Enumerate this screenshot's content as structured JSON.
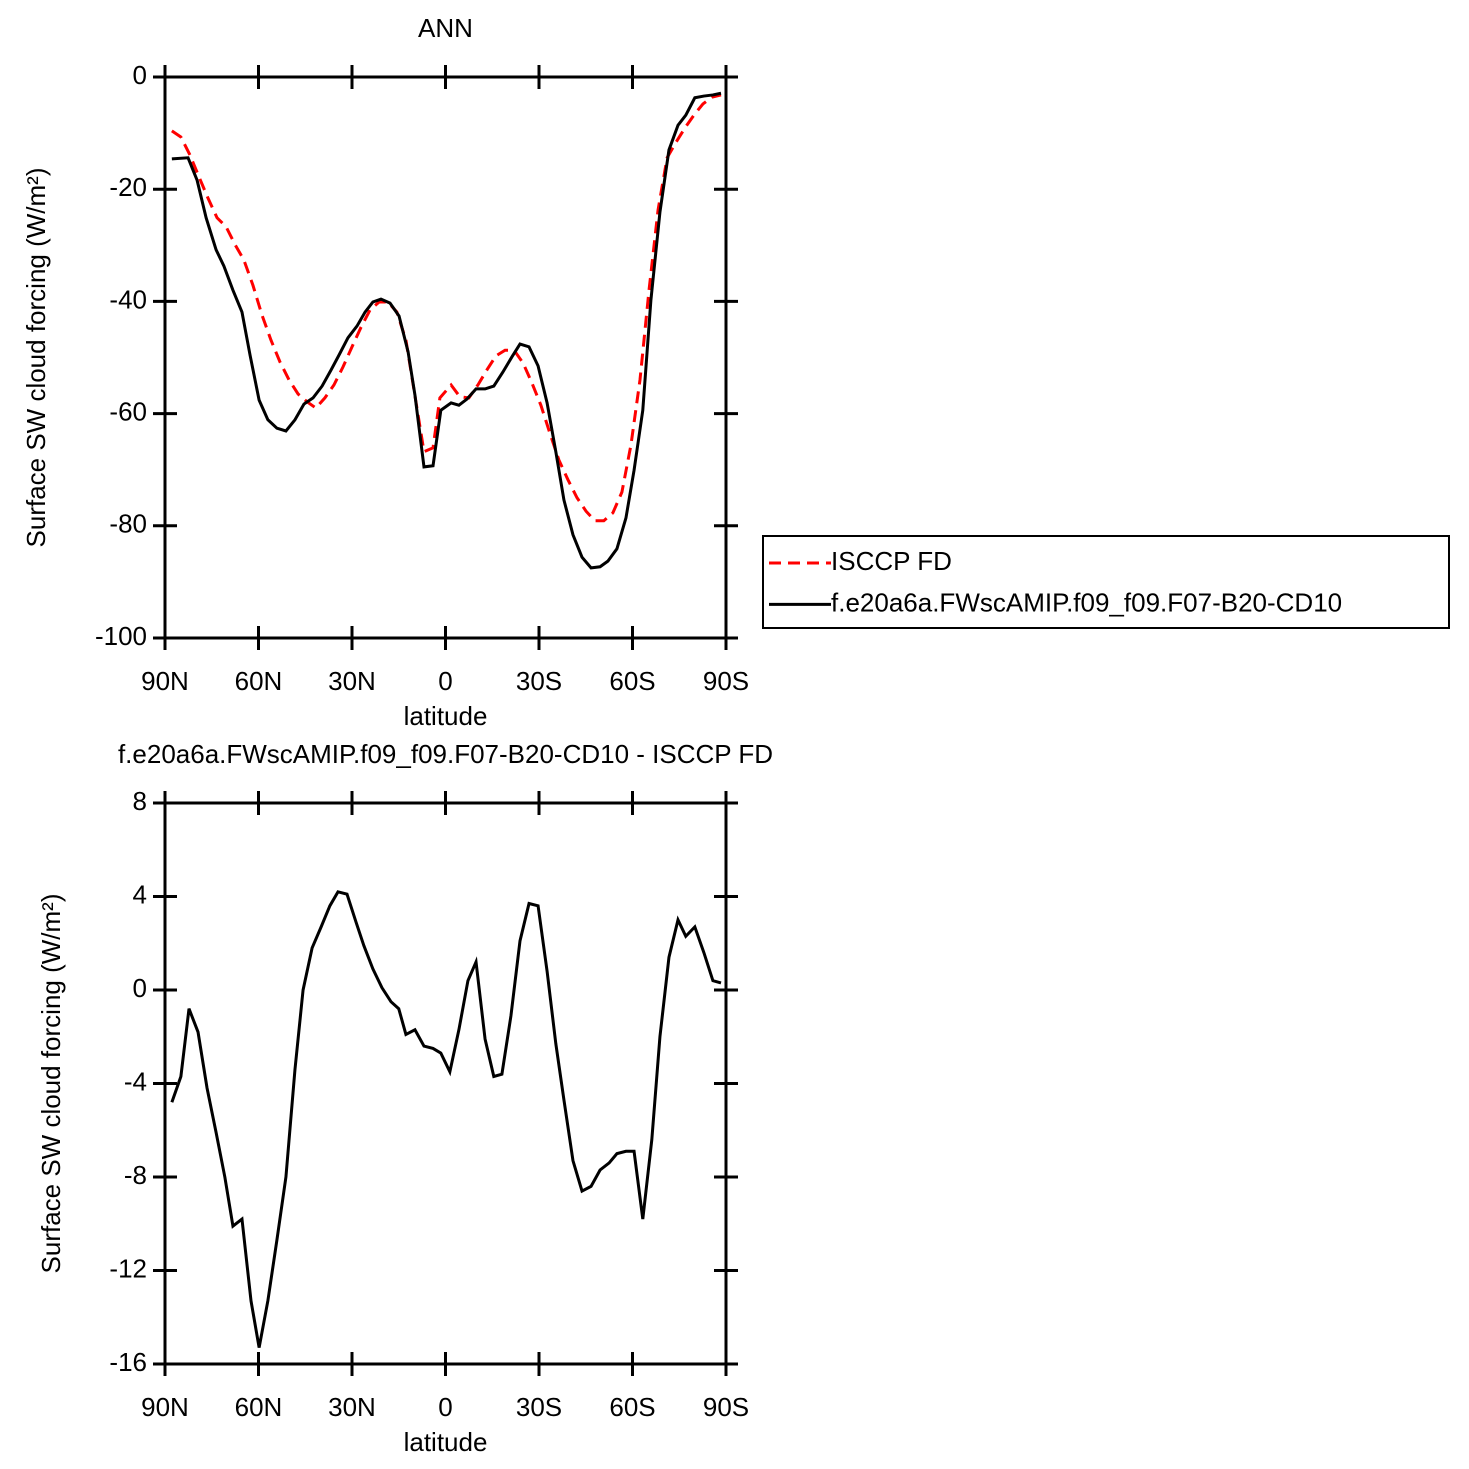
{
  "chart_data": [
    {
      "type": "line",
      "title": "ANN",
      "x_label": "latitude",
      "y_label": "Surface SW cloud forcing (W/m²)",
      "xlim": [
        90,
        -90
      ],
      "xticks": [
        {
          "value": 90,
          "label": "90N"
        },
        {
          "value": 60,
          "label": "60N"
        },
        {
          "value": 30,
          "label": "30N"
        },
        0,
        {
          "value": -30,
          "label": "30S"
        },
        {
          "value": -60,
          "label": "60S"
        },
        {
          "value": -90,
          "label": "90S"
        }
      ],
      "ylim": [
        -100,
        0
      ],
      "yticks": [
        0,
        -20,
        -40,
        -60,
        -80,
        -100
      ],
      "legend": "right",
      "series": [
        {
          "name": "ISCCP FD",
          "color": "#ff0000",
          "dash": "dashed",
          "x": [
            87.8,
            84.9,
            82,
            79.1,
            76.2,
            73.3,
            70.4,
            67.5,
            64.7,
            61.8,
            58.9,
            56,
            53.1,
            50.2,
            47.3,
            44.4,
            41.6,
            38.7,
            35.8,
            32.9,
            30,
            27.1,
            24.2,
            21.3,
            18.5,
            15.6,
            12.7,
            10.1,
            6.9,
            4,
            1.8,
            -1.8,
            -4.6,
            -7.5,
            -10.4,
            -13.3,
            -16.2,
            -19.1,
            -22,
            -24.9,
            -27.7,
            -30.6,
            -33.5,
            -36.4,
            -39.3,
            -42.2,
            -45.1,
            -47.9,
            -50.8,
            -53.7,
            -56.6,
            -59.5,
            -62.4,
            -65.3,
            -68.2,
            -71.1,
            -74,
            -76.8,
            -79.7,
            -82.6,
            -85.5,
            -88.4
          ],
          "values": [
            -9.6,
            -10.7,
            -13.9,
            -17.8,
            -21.6,
            -25.1,
            -26.7,
            -29.9,
            -32.6,
            -37.1,
            -42.4,
            -46.9,
            -50.8,
            -54,
            -56.5,
            -57.9,
            -59,
            -57.2,
            -54.9,
            -51.7,
            -48.1,
            -44.6,
            -41.5,
            -40.1,
            -40.1,
            -41.9,
            -46.9,
            -55.8,
            -66.8,
            -66.1,
            -57.2,
            -54.9,
            -57,
            -57.2,
            -54.9,
            -52.2,
            -49.7,
            -48.7,
            -48.7,
            -51,
            -54.5,
            -58.5,
            -63.5,
            -68.3,
            -71.8,
            -75,
            -77.4,
            -79.1,
            -79.1,
            -77.7,
            -74,
            -65.6,
            -54,
            -38,
            -23.7,
            -14.4,
            -11.6,
            -9.1,
            -6.8,
            -4.8,
            -3.6,
            -3.2
          ]
        },
        {
          "name": "f.e20a6a.FWscAMIP.f09_f09.F07-B20-CD10",
          "color": "#000000",
          "dash": "solid",
          "x": [
            87.8,
            82.6,
            79.7,
            76.8,
            73.6,
            71.1,
            68.2,
            65.3,
            62.7,
            59.8,
            57,
            54.1,
            51.2,
            48.3,
            45.4,
            42.5,
            39.6,
            36.7,
            34.2,
            31.3,
            28.4,
            25.8,
            23.3,
            20.7,
            17.8,
            14.9,
            12,
            9.8,
            6.9,
            4,
            1.5,
            -1.8,
            -4.3,
            -6.9,
            -9.8,
            -12.7,
            -15.5,
            -18.4,
            -21.3,
            -23.9,
            -26.8,
            -29.7,
            -32.6,
            -35.4,
            -38,
            -40.9,
            -43.8,
            -46.7,
            -49.6,
            -52.1,
            -55,
            -57.9,
            -60.5,
            -63.3,
            -65.9,
            -68.8,
            -71.7,
            -74.6,
            -77.1,
            -80,
            -82.9,
            -85.8,
            -88.4
          ],
          "values": [
            -14.6,
            -14.4,
            -18.4,
            -25.1,
            -30.8,
            -33.7,
            -38,
            -41.9,
            -49.6,
            -57.6,
            -61.1,
            -62.6,
            -63.1,
            -61.1,
            -58.3,
            -57.2,
            -55.1,
            -52.2,
            -49.6,
            -46.5,
            -44.4,
            -41.9,
            -40.1,
            -39.6,
            -40.3,
            -42.6,
            -49,
            -56.7,
            -69.5,
            -69.3,
            -59.4,
            -58.1,
            -58.5,
            -57.4,
            -55.6,
            -55.6,
            -55.1,
            -52.6,
            -49.9,
            -47.6,
            -48.1,
            -51.5,
            -58.1,
            -66.8,
            -75.4,
            -81.6,
            -85.6,
            -87.5,
            -87.3,
            -86.3,
            -84.1,
            -78.6,
            -70.1,
            -59.4,
            -39.8,
            -24.1,
            -13,
            -8.6,
            -6.8,
            -3.7,
            -3.4,
            -3.2,
            -2.9
          ]
        }
      ]
    },
    {
      "type": "line",
      "title": "f.e20a6a.FWscAMIP.f09_f09.F07-B20-CD10 - ISCCP FD",
      "x_label": "latitude",
      "y_label": "Surface SW cloud forcing (W/m²)",
      "xlim": [
        90,
        -90
      ],
      "xticks": [
        {
          "value": 90,
          "label": "90N"
        },
        {
          "value": 60,
          "label": "60N"
        },
        {
          "value": 30,
          "label": "30N"
        },
        0,
        {
          "value": -30,
          "label": "30S"
        },
        {
          "value": -60,
          "label": "60S"
        },
        {
          "value": -90,
          "label": "90S"
        }
      ],
      "ylim": [
        -16,
        8
      ],
      "yticks": [
        8,
        4,
        0,
        -4,
        -8,
        -12,
        -16
      ],
      "color": "#000000",
      "x": [
        87.8,
        84.9,
        82.3,
        79.4,
        76.5,
        73.6,
        70.8,
        68.2,
        65.3,
        62.4,
        59.8,
        57,
        54.1,
        51.2,
        48.3,
        45.7,
        42.8,
        39.9,
        37.1,
        34.5,
        31.6,
        28.7,
        26.2,
        23.3,
        20.4,
        17.5,
        15,
        12.7,
        9.8,
        6.9,
        4,
        1.5,
        -1.4,
        -4.3,
        -7.2,
        -9.8,
        -12.7,
        -15.5,
        -18.1,
        -21,
        -23.9,
        -26.8,
        -29.7,
        -32.6,
        -35.4,
        -38,
        -40.9,
        -43.8,
        -46.7,
        -49.6,
        -52.5,
        -55,
        -57.9,
        -60.5,
        -63.3,
        -66.2,
        -68.8,
        -71.7,
        -74.6,
        -77.1,
        -80,
        -82.9,
        -85.8,
        -88.4
      ],
      "values": [
        -4.8,
        -3.7,
        -0.8,
        -1.8,
        -4.2,
        -6.1,
        -8,
        -10.1,
        -9.8,
        -13.3,
        -15.3,
        -13.3,
        -10.7,
        -8,
        -3.4,
        0,
        1.8,
        2.7,
        3.6,
        4.2,
        4.1,
        2.9,
        1.9,
        0.9,
        0.1,
        -0.5,
        -0.8,
        -1.9,
        -1.7,
        -2.4,
        -2.5,
        -2.7,
        -3.5,
        -1.7,
        0.4,
        1.2,
        -2.1,
        -3.7,
        -3.6,
        -1.1,
        2.1,
        3.7,
        3.6,
        0.8,
        -2.3,
        -4.7,
        -7.3,
        -8.6,
        -8.4,
        -7.7,
        -7.4,
        -7,
        -6.9,
        -6.9,
        -9.8,
        -6.4,
        -2,
        1.4,
        3,
        2.3,
        2.7,
        1.6,
        0.4,
        0.3
      ]
    }
  ]
}
